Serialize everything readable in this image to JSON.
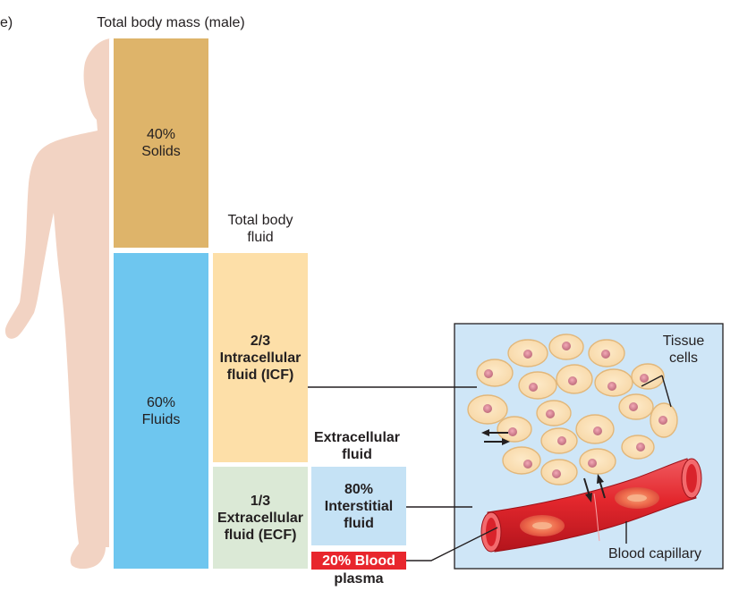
{
  "edge_fragment": "e)",
  "header": "Total body mass (male)",
  "solids": {
    "percent": "40%",
    "label": "Solids"
  },
  "fluids": {
    "percent": "60%",
    "label": "Fluids"
  },
  "total_body_fluid": {
    "line1": "Total body",
    "line2": "fluid"
  },
  "icf": {
    "fraction": "2/3",
    "line1": "Intracellular",
    "line2": "fluid (ICF)"
  },
  "ecf": {
    "fraction": "1/3",
    "line1": "Extracellular",
    "line2": "fluid (ECF)"
  },
  "extracellular_fluid": {
    "line1": "Extracellular",
    "line2": "fluid"
  },
  "interstitial": {
    "percent": "80%",
    "line1": "Interstitial",
    "line2": "fluid"
  },
  "blood_plasma": {
    "line1": "20% Blood",
    "line2": "plasma"
  },
  "inset": {
    "tissue_cells": {
      "line1": "Tissue",
      "line2": "cells"
    },
    "blood_capillary": "Blood capillary"
  },
  "colors": {
    "solids": "#deb46a",
    "fluids": "#6ec6ef",
    "icf": "#fddfa8",
    "ecf": "#dbe9d6",
    "interstitial": "#c5e2f5",
    "blood_plasma": "#e8262d",
    "skin": "#f2d3c3",
    "inset_bg": "#cfe6f7",
    "capillary": "#e63033"
  }
}
